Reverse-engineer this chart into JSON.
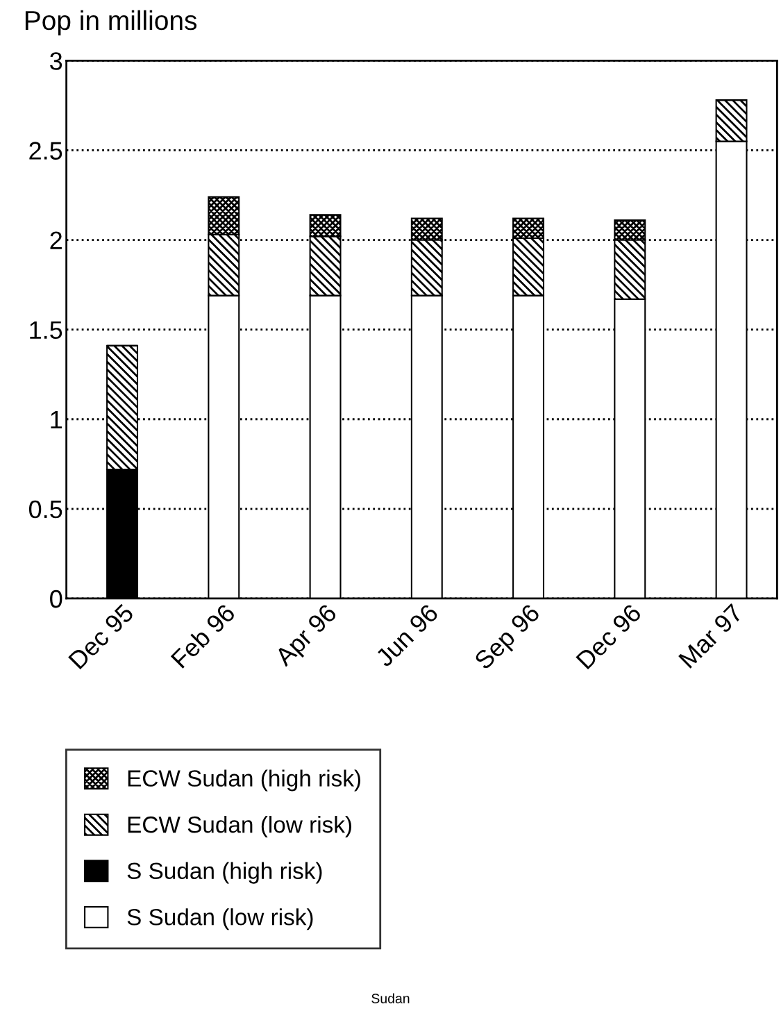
{
  "chart_data": {
    "type": "bar",
    "title": "Pop in millions",
    "stacked": true,
    "categories": [
      "Dec 95",
      "Feb 96",
      "Apr 96",
      "Jun 96",
      "Sep 96",
      "Dec 96",
      "Mar 97"
    ],
    "series": [
      {
        "name": "S Sudan (low risk)",
        "color": "#ffffff",
        "values": [
          0,
          1.69,
          1.69,
          1.69,
          1.69,
          1.67,
          2.55
        ]
      },
      {
        "name": "S Sudan (high risk)",
        "color": "#000000",
        "values": [
          0.72,
          0,
          0,
          0,
          0,
          0,
          0
        ]
      },
      {
        "name": "ECW Sudan (low risk)",
        "color": "#000000",
        "values": [
          0.69,
          0.34,
          0.33,
          0.31,
          0.32,
          0.33,
          0.23
        ]
      },
      {
        "name": "ECW Sudan (high risk)",
        "color": "#000000",
        "values": [
          0,
          0.21,
          0.12,
          0.12,
          0.11,
          0.11,
          0
        ]
      }
    ],
    "ylim": [
      0,
      3
    ],
    "yticks": [
      0,
      0.5,
      1,
      1.5,
      2,
      2.5,
      3
    ],
    "grid": "y",
    "legend": "bottom left",
    "annotations": [
      "Sudan"
    ]
  }
}
